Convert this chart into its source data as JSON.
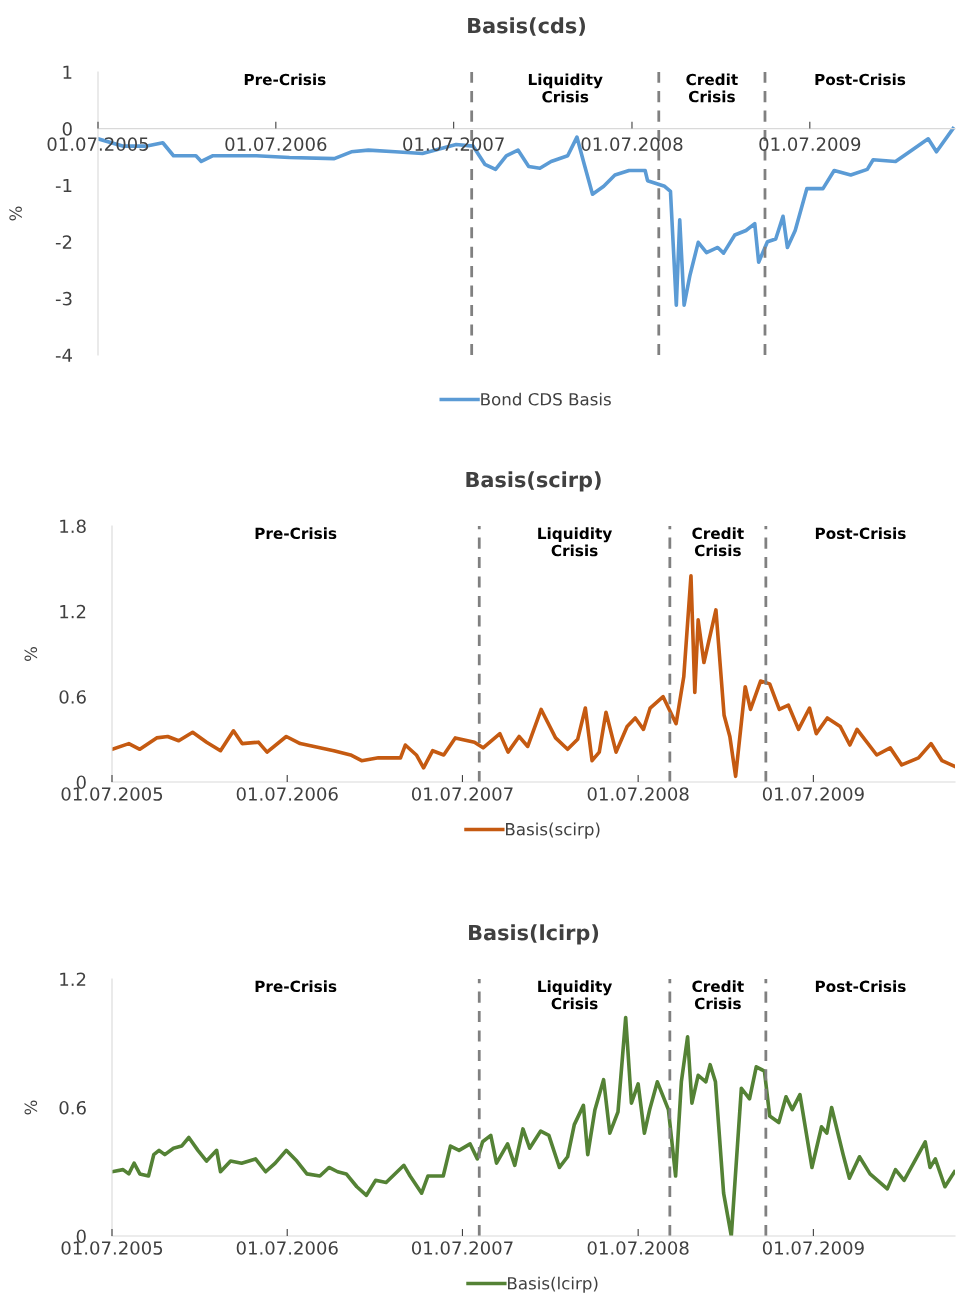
{
  "chart_data": [
    {
      "type": "line",
      "title": "Basis(cds)",
      "ylabel": "%",
      "legend": "bottom",
      "xlim": [
        "2005-07-01",
        "2010-04-25"
      ],
      "ylim": [
        -4,
        1
      ],
      "yticks": [
        -4,
        -3,
        -2,
        -1,
        0,
        1
      ],
      "xticks": [
        {
          "value": "2005-07-01",
          "label": "01.07.2005"
        },
        {
          "value": "2006-07-01",
          "label": "01.07.2006"
        },
        {
          "value": "2007-07-01",
          "label": "01.07.2007"
        },
        {
          "value": "2008-07-01",
          "label": "01.07.2008"
        },
        {
          "value": "2009-07-01",
          "label": "01.07.2009"
        }
      ],
      "ref_lines": [
        {
          "axis": "x",
          "value": "2007-08-07",
          "color": "#808080",
          "line_style": "dashed"
        },
        {
          "axis": "x",
          "value": "2008-08-25",
          "color": "#808080",
          "line_style": "dashed"
        },
        {
          "axis": "x",
          "value": "2009-03-31",
          "color": "#808080",
          "line_style": "dashed"
        }
      ],
      "annotations": [
        "Pre-Crisis",
        "Liquidity\nCrisis",
        "Credit\nCrisis",
        "Post-Crisis"
      ],
      "series": [
        {
          "name": "Bond CDS Basis",
          "color": "#5b9bd5",
          "x": [
            "2005-07-01",
            "2005-08-22",
            "2005-10-07",
            "2005-11-11",
            "2005-12-03",
            "2006-01-18",
            "2006-01-29",
            "2006-02-21",
            "2006-05-22",
            "2006-07-29",
            "2006-10-29",
            "2006-12-03",
            "2007-01-07",
            "2007-03-03",
            "2007-04-28",
            "2007-07-06",
            "2007-08-10",
            "2007-09-03",
            "2007-09-25",
            "2007-10-17",
            "2007-11-10",
            "2007-12-02",
            "2007-12-25",
            "2008-01-17",
            "2008-02-20",
            "2008-03-10",
            "2008-03-25",
            "2008-04-11",
            "2008-05-04",
            "2008-05-27",
            "2008-06-25",
            "2008-07-28",
            "2008-08-02",
            "2008-09-06",
            "2008-09-18",
            "2008-09-30",
            "2008-10-07",
            "2008-10-16",
            "2008-10-28",
            "2008-11-14",
            "2008-12-01",
            "2008-12-24",
            "2009-01-05",
            "2009-01-28",
            "2009-02-20",
            "2009-03-10",
            "2009-03-18",
            "2009-04-05",
            "2009-04-22",
            "2009-05-07",
            "2009-05-16",
            "2009-06-01",
            "2009-06-25",
            "2009-07-28",
            "2009-08-20",
            "2009-09-23",
            "2009-10-27",
            "2009-11-08",
            "2009-12-24",
            "2010-01-27",
            "2010-03-01",
            "2010-03-18",
            "2010-04-21"
          ],
          "values": [
            -0.18,
            -0.31,
            -0.31,
            -0.25,
            -0.48,
            -0.48,
            -0.58,
            -0.48,
            -0.48,
            -0.51,
            -0.53,
            -0.41,
            -0.38,
            -0.41,
            -0.44,
            -0.28,
            -0.31,
            -0.63,
            -0.72,
            -0.48,
            -0.38,
            -0.67,
            -0.7,
            -0.58,
            -0.48,
            -0.15,
            -0.63,
            -1.16,
            -1.02,
            -0.82,
            -0.74,
            -0.74,
            -0.92,
            -1.02,
            -1.11,
            -3.12,
            -1.61,
            -3.12,
            -2.59,
            -2.01,
            -2.19,
            -2.1,
            -2.2,
            -1.88,
            -1.8,
            -1.68,
            -2.36,
            -2.0,
            -1.95,
            -1.55,
            -2.1,
            -1.8,
            -1.06,
            -1.06,
            -0.74,
            -0.82,
            -0.72,
            -0.55,
            -0.58,
            -0.38,
            -0.18,
            -0.41,
            0.0
          ]
        }
      ]
    },
    {
      "type": "line",
      "title": "Basis(scirp)",
      "ylabel": "%",
      "legend": "bottom",
      "xlim": [
        "2005-07-01",
        "2010-04-22"
      ],
      "ylim": [
        0,
        1.8
      ],
      "yticks": [
        {
          "value": 0,
          "label": "0"
        },
        0.6,
        1.2,
        1.8
      ],
      "xticks": [
        {
          "value": "2005-07-01",
          "label": "01.07.2005"
        },
        {
          "value": "2006-07-01",
          "label": "01.07.2006"
        },
        {
          "value": "2007-07-01",
          "label": "01.07.2007"
        },
        {
          "value": "2008-07-01",
          "label": "01.07.2008"
        },
        {
          "value": "2009-07-01",
          "label": "01.07.2009"
        }
      ],
      "ref_lines": [
        {
          "axis": "x",
          "value": "2007-08-05",
          "color": "#808080",
          "line_style": "dashed"
        },
        {
          "axis": "x",
          "value": "2008-09-05",
          "color": "#808080",
          "line_style": "dashed"
        },
        {
          "axis": "x",
          "value": "2009-03-24",
          "color": "#808080",
          "line_style": "dashed"
        }
      ],
      "annotations": [
        "Pre-Crisis",
        "Liquidity\nCrisis",
        "Credit\nCrisis",
        "Post-Crisis"
      ],
      "series": [
        {
          "name": "Basis(scirp)",
          "color": "#c55a11",
          "x": [
            "2005-07-01",
            "2005-08-05",
            "2005-08-28",
            "2005-10-02",
            "2005-10-25",
            "2005-11-17",
            "2005-12-16",
            "2006-01-14",
            "2006-02-12",
            "2006-03-11",
            "2006-03-29",
            "2006-05-02",
            "2006-05-20",
            "2006-06-29",
            "2006-07-28",
            "2006-10-06",
            "2006-11-10",
            "2006-12-03",
            "2007-01-07",
            "2007-02-22",
            "2007-03-04",
            "2007-03-27",
            "2007-04-11",
            "2007-04-30",
            "2007-05-23",
            "2007-06-16",
            "2007-07-26",
            "2007-08-13",
            "2007-09-17",
            "2007-10-04",
            "2007-10-27",
            "2007-11-14",
            "2007-12-12",
            "2008-01-11",
            "2008-02-05",
            "2008-02-26",
            "2008-03-13",
            "2008-03-27",
            "2008-04-11",
            "2008-04-25",
            "2008-05-16",
            "2008-06-08",
            "2008-06-25",
            "2008-07-12",
            "2008-07-26",
            "2008-08-22",
            "2008-09-18",
            "2008-10-04",
            "2008-10-19",
            "2008-10-27",
            "2008-11-03",
            "2008-11-15",
            "2008-12-10",
            "2008-12-27",
            "2009-01-08",
            "2009-01-20",
            "2009-02-09",
            "2009-02-20",
            "2009-03-13",
            "2009-04-01",
            "2009-04-21",
            "2009-05-10",
            "2009-05-31",
            "2009-06-23",
            "2009-07-07",
            "2009-07-30",
            "2009-08-26",
            "2009-09-15",
            "2009-09-30",
            "2009-11-10",
            "2009-12-08",
            "2010-01-01",
            "2010-02-05",
            "2010-03-03",
            "2010-03-26",
            "2010-04-21"
          ],
          "values": [
            0.23,
            0.27,
            0.23,
            0.31,
            0.32,
            0.29,
            0.35,
            0.28,
            0.22,
            0.36,
            0.27,
            0.28,
            0.21,
            0.32,
            0.27,
            0.22,
            0.19,
            0.15,
            0.17,
            0.17,
            0.26,
            0.19,
            0.1,
            0.22,
            0.19,
            0.31,
            0.28,
            0.24,
            0.34,
            0.21,
            0.32,
            0.25,
            0.51,
            0.31,
            0.23,
            0.3,
            0.52,
            0.15,
            0.21,
            0.49,
            0.21,
            0.39,
            0.45,
            0.37,
            0.52,
            0.6,
            0.41,
            0.74,
            1.45,
            0.63,
            1.14,
            0.84,
            1.21,
            0.47,
            0.32,
            0.04,
            0.67,
            0.51,
            0.71,
            0.69,
            0.51,
            0.54,
            0.37,
            0.52,
            0.34,
            0.45,
            0.39,
            0.26,
            0.37,
            0.19,
            0.24,
            0.12,
            0.17,
            0.27,
            0.15,
            0.11
          ]
        }
      ]
    },
    {
      "type": "line",
      "title": "Basis(lcirp)",
      "ylabel": "%",
      "legend": "bottom",
      "xlim": [
        "2005-07-01",
        "2010-04-22"
      ],
      "ylim": [
        0,
        1.2
      ],
      "yticks": [
        {
          "value": 0,
          "label": "0"
        },
        0.6,
        1.2
      ],
      "xticks": [
        {
          "value": "2005-07-01",
          "label": "01.07.2005"
        },
        {
          "value": "2006-07-01",
          "label": "01.07.2006"
        },
        {
          "value": "2007-07-01",
          "label": "01.07.2007"
        },
        {
          "value": "2008-07-01",
          "label": "01.07.2008"
        },
        {
          "value": "2009-07-01",
          "label": "01.07.2009"
        }
      ],
      "ref_lines": [
        {
          "axis": "x",
          "value": "2007-08-05",
          "color": "#808080",
          "line_style": "dashed"
        },
        {
          "axis": "x",
          "value": "2008-09-05",
          "color": "#808080",
          "line_style": "dashed"
        },
        {
          "axis": "x",
          "value": "2009-03-24",
          "color": "#808080",
          "line_style": "dashed"
        }
      ],
      "annotations": [
        "Pre-Crisis",
        "Liquidity\nCrisis",
        "Credit\nCrisis",
        "Post-Crisis"
      ],
      "series": [
        {
          "name": "Basis(lcirp)",
          "color": "#548235",
          "x": [
            "2005-07-01",
            "2005-07-24",
            "2005-08-05",
            "2005-08-16",
            "2005-08-28",
            "2005-09-15",
            "2005-09-26",
            "2005-10-07",
            "2005-10-19",
            "2005-11-06",
            "2005-11-23",
            "2005-12-08",
            "2005-12-27",
            "2006-01-14",
            "2006-02-04",
            "2006-02-12",
            "2006-03-05",
            "2006-03-28",
            "2006-04-26",
            "2006-05-17",
            "2006-06-06",
            "2006-06-29",
            "2006-07-21",
            "2006-08-11",
            "2006-09-07",
            "2006-09-26",
            "2006-10-14",
            "2006-11-01",
            "2006-11-23",
            "2006-12-13",
            "2007-01-01",
            "2007-01-23",
            "2007-03-01",
            "2007-03-14",
            "2007-04-07",
            "2007-04-20",
            "2007-05-22",
            "2007-06-06",
            "2007-06-24",
            "2007-07-17",
            "2007-08-01",
            "2007-08-12",
            "2007-08-29",
            "2007-09-10",
            "2007-10-03",
            "2007-10-18",
            "2007-11-04",
            "2007-11-18",
            "2007-12-11",
            "2007-12-28",
            "2008-01-19",
            "2008-02-05",
            "2008-02-19",
            "2008-03-09",
            "2008-03-18",
            "2008-04-02",
            "2008-04-20",
            "2008-05-03",
            "2008-05-20",
            "2008-06-05",
            "2008-06-17",
            "2008-07-01",
            "2008-07-14",
            "2008-07-25",
            "2008-08-10",
            "2008-09-02",
            "2008-09-17",
            "2008-09-29",
            "2008-10-12",
            "2008-10-21",
            "2008-11-03",
            "2008-11-19",
            "2008-11-28",
            "2008-12-09",
            "2008-12-26",
            "2009-01-11",
            "2009-02-01",
            "2009-02-18",
            "2009-03-04",
            "2009-03-21",
            "2009-04-01",
            "2009-04-20",
            "2009-05-05",
            "2009-05-18",
            "2009-06-03",
            "2009-06-28",
            "2009-07-18",
            "2009-07-29",
            "2009-08-08",
            "2009-09-01",
            "2009-09-14",
            "2009-10-05",
            "2009-10-27",
            "2009-12-02",
            "2009-12-19",
            "2010-01-06",
            "2010-01-28",
            "2010-02-19",
            "2010-03-01",
            "2010-03-12",
            "2010-04-01",
            "2010-04-21"
          ],
          "values": [
            0.3,
            0.31,
            0.29,
            0.34,
            0.29,
            0.28,
            0.38,
            0.4,
            0.38,
            0.41,
            0.42,
            0.46,
            0.4,
            0.35,
            0.4,
            0.3,
            0.35,
            0.34,
            0.36,
            0.3,
            0.34,
            0.4,
            0.35,
            0.29,
            0.28,
            0.32,
            0.3,
            0.29,
            0.23,
            0.19,
            0.26,
            0.25,
            0.33,
            0.28,
            0.2,
            0.28,
            0.28,
            0.42,
            0.4,
            0.43,
            0.36,
            0.44,
            0.47,
            0.34,
            0.43,
            0.33,
            0.5,
            0.41,
            0.49,
            0.47,
            0.32,
            0.37,
            0.52,
            0.61,
            0.38,
            0.59,
            0.73,
            0.48,
            0.58,
            1.02,
            0.62,
            0.71,
            0.48,
            0.59,
            0.72,
            0.59,
            0.28,
            0.72,
            0.93,
            0.62,
            0.75,
            0.72,
            0.8,
            0.72,
            0.2,
            0.0,
            0.69,
            0.64,
            0.79,
            0.77,
            0.56,
            0.53,
            0.65,
            0.59,
            0.66,
            0.32,
            0.51,
            0.48,
            0.6,
            0.38,
            0.27,
            0.37,
            0.29,
            0.22,
            0.31,
            0.26,
            0.35,
            0.44,
            0.32,
            0.36,
            0.23,
            0.3
          ]
        }
      ]
    }
  ]
}
